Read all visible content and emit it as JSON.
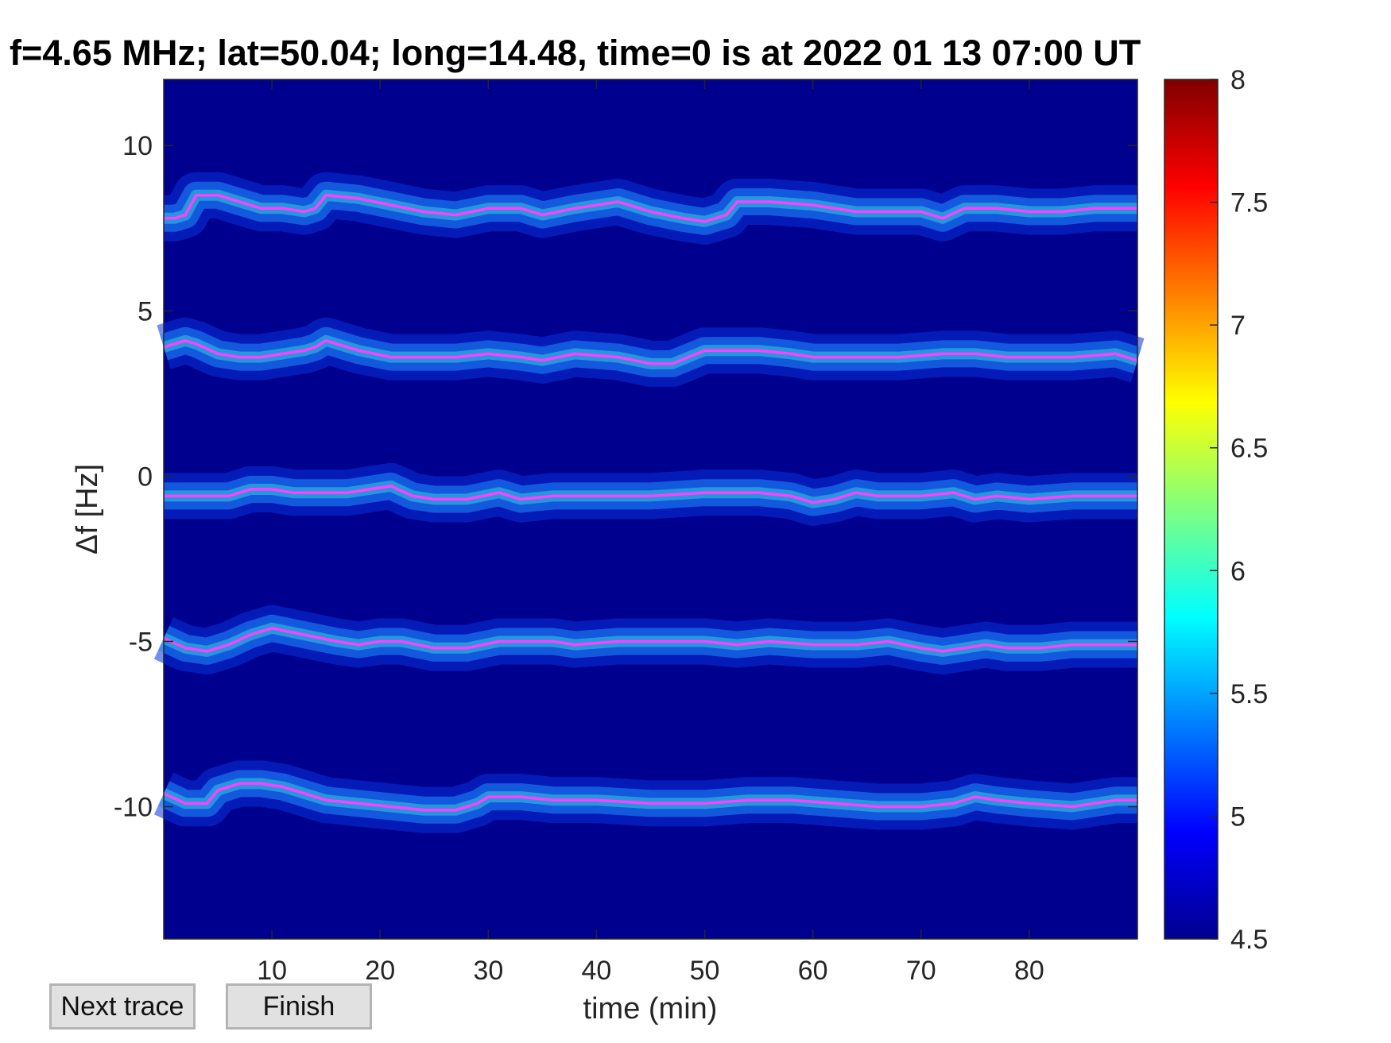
{
  "chart_data": {
    "type": "heatmap",
    "title": "f=4.65 MHz;  lat=50.04; long=14.48, time=0 is at 2022 01 13 07:00 UT",
    "xlabel": "time (min)",
    "ylabel": "Δf [Hz]",
    "xlim": [
      0,
      90
    ],
    "ylim": [
      -14,
      12
    ],
    "x_ticks": [
      10,
      20,
      30,
      40,
      50,
      60,
      70,
      80
    ],
    "y_ticks": [
      10,
      5,
      0,
      -5,
      -10
    ],
    "colorbar": {
      "range": [
        4.5,
        8
      ],
      "ticks": [
        "8",
        "7.5",
        "7",
        "6.5",
        "6",
        "5.5",
        "5",
        "4.5"
      ],
      "colormap": "jet"
    },
    "background_color": "#00008f",
    "trace_color": "#ff40ff",
    "series": [
      {
        "x": [
          0,
          1,
          2,
          3,
          5,
          7,
          9,
          11,
          13,
          14,
          15,
          18,
          21,
          24,
          27,
          30,
          33,
          35,
          38,
          42,
          45,
          48,
          50,
          52,
          53,
          56,
          60,
          64,
          68,
          70,
          72,
          74,
          77,
          80,
          83,
          86,
          88,
          90
        ],
        "values": [
          7.8,
          7.8,
          7.9,
          8.5,
          8.5,
          8.3,
          8.1,
          8.1,
          8.0,
          8.1,
          8.5,
          8.4,
          8.2,
          8.0,
          7.9,
          8.1,
          8.1,
          7.9,
          8.1,
          8.3,
          8.0,
          7.8,
          7.7,
          7.9,
          8.3,
          8.3,
          8.2,
          8.0,
          8.0,
          8.0,
          7.8,
          8.1,
          8.1,
          8.0,
          8.0,
          8.1,
          8.1,
          8.1
        ]
      },
      {
        "x": [
          0,
          1,
          2,
          3,
          5,
          7,
          9,
          11,
          13,
          14,
          15,
          18,
          21,
          24,
          27,
          30,
          33,
          35,
          38,
          42,
          45,
          47,
          50,
          52,
          55,
          58,
          60,
          64,
          68,
          72,
          75,
          78,
          81,
          84,
          88,
          90
        ],
        "values": [
          3.9,
          4.0,
          4.1,
          4.0,
          3.7,
          3.6,
          3.6,
          3.7,
          3.8,
          3.9,
          4.1,
          3.8,
          3.6,
          3.6,
          3.6,
          3.7,
          3.6,
          3.5,
          3.7,
          3.6,
          3.4,
          3.4,
          3.8,
          3.8,
          3.8,
          3.7,
          3.6,
          3.6,
          3.6,
          3.7,
          3.7,
          3.6,
          3.6,
          3.6,
          3.7,
          3.5
        ]
      },
      {
        "x": [
          0,
          2,
          4,
          6,
          8,
          10,
          12,
          14,
          17,
          19,
          21,
          23,
          25,
          28,
          31,
          33,
          36,
          40,
          45,
          50,
          55,
          58,
          60,
          62,
          64,
          66,
          70,
          73,
          75,
          77,
          80,
          84,
          88,
          90
        ],
        "values": [
          -0.6,
          -0.6,
          -0.6,
          -0.6,
          -0.4,
          -0.4,
          -0.5,
          -0.5,
          -0.5,
          -0.4,
          -0.3,
          -0.6,
          -0.7,
          -0.7,
          -0.5,
          -0.7,
          -0.6,
          -0.6,
          -0.6,
          -0.5,
          -0.5,
          -0.6,
          -0.8,
          -0.7,
          -0.5,
          -0.6,
          -0.6,
          -0.5,
          -0.7,
          -0.6,
          -0.7,
          -0.6,
          -0.6,
          -0.6
        ]
      },
      {
        "x": [
          0,
          2,
          4,
          6,
          8,
          10,
          13,
          16,
          18,
          20,
          22,
          25,
          28,
          31,
          34,
          36,
          38,
          42,
          45,
          47,
          50,
          53,
          56,
          60,
          64,
          67,
          70,
          72,
          74,
          76,
          78,
          81,
          84,
          87,
          90
        ],
        "values": [
          -4.9,
          -5.2,
          -5.3,
          -5.1,
          -4.8,
          -4.6,
          -4.8,
          -5.0,
          -5.1,
          -5.0,
          -5.0,
          -5.2,
          -5.2,
          -5.0,
          -5.0,
          -5.0,
          -5.1,
          -5.0,
          -5.0,
          -5.0,
          -5.0,
          -5.1,
          -5.0,
          -5.1,
          -5.1,
          -5.0,
          -5.2,
          -5.3,
          -5.2,
          -5.1,
          -5.2,
          -5.2,
          -5.1,
          -5.1,
          -5.1
        ]
      },
      {
        "x": [
          0,
          2,
          4,
          5,
          7,
          9,
          11,
          13,
          15,
          18,
          21,
          24,
          27,
          29,
          30,
          33,
          36,
          40,
          45,
          50,
          54,
          58,
          62,
          66,
          70,
          73,
          75,
          77,
          80,
          84,
          88,
          90
        ],
        "values": [
          -9.6,
          -9.9,
          -9.9,
          -9.5,
          -9.3,
          -9.3,
          -9.4,
          -9.6,
          -9.8,
          -9.9,
          -10.0,
          -10.1,
          -10.1,
          -9.9,
          -9.7,
          -9.7,
          -9.8,
          -9.8,
          -9.9,
          -9.9,
          -9.8,
          -9.8,
          -9.9,
          -10.0,
          -10.0,
          -9.9,
          -9.7,
          -9.8,
          -9.9,
          -10.0,
          -9.8,
          -9.8
        ]
      }
    ]
  },
  "buttons": {
    "next_trace_label": "Next trace",
    "finish_label": "Finish"
  }
}
